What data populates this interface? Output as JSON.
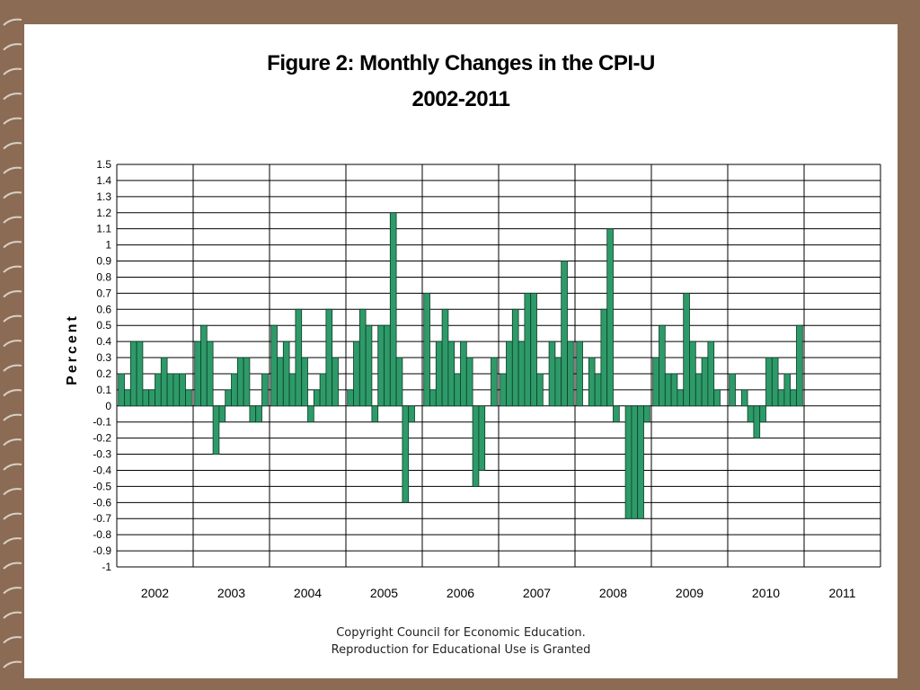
{
  "slide": {
    "title": "Figure 2: Monthly Changes in the CPI-U",
    "subtitle": "2002-2011",
    "copyright_line1": "Copyright Council for Economic Education.",
    "copyright_line2": "Reproduction for Educational Use is Granted"
  },
  "colors": {
    "bar": "#2e9a6a",
    "bar_stroke": "#0c3d24",
    "background": "#8b6b53"
  },
  "chart_data": {
    "type": "bar",
    "title": "Figure 2: Monthly Changes in the CPI-U 2002-2011",
    "ylabel": "Percent",
    "xlabel": "",
    "ylim": [
      -1,
      1.5
    ],
    "ytick_step": 0.1,
    "yticks": [
      "1.5",
      "1.4",
      "1.3",
      "1.2",
      "1.1",
      "1",
      "0.9",
      "0.8",
      "0.7",
      "0.6",
      "0.5",
      "0.4",
      "0.3",
      "0.2",
      "0.1",
      "0",
      "-0.1",
      "-0.2",
      "-0.3",
      "-0.4",
      "-0.5",
      "-0.6",
      "-0.7",
      "-0.8",
      "-0.9",
      "-1"
    ],
    "grid": true,
    "years": [
      "2002",
      "2003",
      "2004",
      "2005",
      "2006",
      "2007",
      "2008",
      "2009",
      "2010",
      "2011"
    ],
    "series": [
      {
        "values": [
          [
            0.2,
            0.1,
            0.4,
            0.4,
            0.1,
            0.1,
            0.2,
            0.3,
            0.2,
            0.2,
            0.2,
            0.1
          ],
          [
            0.4,
            0.5,
            0.4,
            -0.3,
            -0.1,
            0.1,
            0.2,
            0.3,
            0.3,
            -0.1,
            -0.1,
            0.2
          ],
          [
            0.5,
            0.3,
            0.4,
            0.2,
            0.6,
            0.3,
            -0.1,
            0.1,
            0.2,
            0.6,
            0.3,
            0.0
          ],
          [
            0.1,
            0.4,
            0.6,
            0.5,
            -0.1,
            0.5,
            0.5,
            1.2,
            0.3,
            -0.6,
            -0.1,
            0.0
          ],
          [
            0.7,
            0.1,
            0.4,
            0.6,
            0.4,
            0.2,
            0.4,
            0.3,
            -0.5,
            -0.4,
            0.0,
            0.3
          ],
          [
            0.2,
            0.4,
            0.6,
            0.4,
            0.7,
            0.7,
            0.2,
            0.0,
            0.4,
            0.3,
            0.9,
            0.4
          ],
          [
            0.4,
            0.0,
            0.3,
            0.2,
            0.6,
            1.1,
            -0.1,
            0.0,
            -0.7,
            -0.7,
            -0.7,
            -0.1
          ],
          [
            0.3,
            0.5,
            0.2,
            0.2,
            0.1,
            0.7,
            0.4,
            0.2,
            0.3,
            0.4,
            0.1,
            0.0
          ],
          [
            0.2,
            0.0,
            0.1,
            -0.1,
            -0.2,
            -0.1,
            0.3,
            0.3,
            0.1,
            0.2,
            0.1,
            0.5
          ],
          []
        ]
      }
    ]
  }
}
